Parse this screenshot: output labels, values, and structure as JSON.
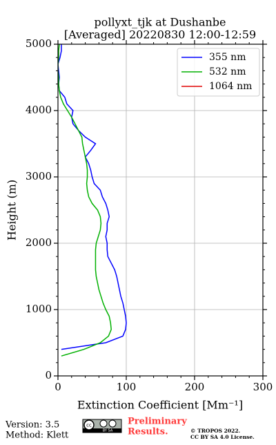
{
  "chart_data": {
    "type": "line",
    "orientation": "vertical",
    "title": [
      "pollyxt_tjk at Dushanbe",
      "[Averaged] 20220830 12:00-12:59"
    ],
    "xlabel": "Extinction Coefficient [Mm⁻¹]",
    "ylabel": "Height (m)",
    "xlim": [
      0,
      300
    ],
    "ylim": [
      0,
      5000
    ],
    "xticks": [
      0,
      100,
      200,
      300
    ],
    "yticks": [
      0,
      1000,
      2000,
      3000,
      4000,
      5000
    ],
    "xminorticks": [
      20,
      40,
      60,
      80,
      120,
      140,
      160,
      180,
      220,
      240,
      260,
      280
    ],
    "yminorticks": [
      200,
      400,
      600,
      800,
      1200,
      1400,
      1600,
      1800,
      2200,
      2400,
      2600,
      2800,
      3200,
      3400,
      3600,
      3800,
      4200,
      4400,
      4600,
      4800
    ],
    "grid": true,
    "legend": "upper right",
    "x": [
      300,
      400,
      500,
      600,
      700,
      800,
      900,
      1000,
      1100,
      1200,
      1300,
      1400,
      1500,
      1600,
      1700,
      1800,
      1900,
      2000,
      2100,
      2200,
      2300,
      2400,
      2500,
      2600,
      2700,
      2800,
      2900,
      3000,
      3100,
      3200,
      3300,
      3400,
      3500,
      3600,
      3700,
      3800,
      3900,
      4000,
      4100,
      4200,
      4300,
      4400,
      4500,
      4600,
      4700,
      4800,
      4900,
      5000
    ],
    "series": [
      {
        "name": "355 nm",
        "color": "#0000ff",
        "values": [
          null,
          5,
          70,
          95,
          99,
          100,
          99,
          97,
          95,
          92,
          90,
          88,
          86,
          83,
          78,
          73,
          72,
          72,
          70,
          72,
          72,
          75,
          73,
          70,
          65,
          62,
          53,
          50,
          48,
          45,
          40,
          48,
          55,
          40,
          30,
          22,
          20,
          22,
          13,
          10,
          2,
          1,
          2,
          1,
          0,
          3,
          5,
          5
        ]
      },
      {
        "name": "532 nm",
        "color": "#00b000",
        "values": [
          5,
          38,
          62,
          74,
          78,
          77,
          75,
          70,
          66,
          63,
          60,
          58,
          56,
          55,
          55,
          55,
          55,
          56,
          59,
          62,
          63,
          62,
          58,
          50,
          45,
          43,
          42,
          43,
          43,
          42,
          40,
          38,
          36,
          35,
          30,
          25,
          20,
          14,
          8,
          4,
          2,
          1,
          1,
          0,
          0,
          1,
          1,
          2
        ]
      },
      {
        "name": "1064 nm",
        "color": "#e00000",
        "values": [
          null,
          null,
          null,
          null,
          null,
          null,
          null,
          null,
          null,
          null,
          null,
          null,
          null,
          null,
          null,
          null,
          null,
          null,
          null,
          null,
          null,
          null,
          null,
          null,
          null,
          null,
          null,
          null,
          null,
          null,
          null,
          null,
          null,
          null,
          null,
          null,
          null,
          null,
          null,
          null,
          null,
          null,
          null,
          null,
          null,
          null,
          null,
          null
        ]
      }
    ]
  },
  "footer": {
    "version": "Version: 3.5",
    "method": "Method: Klett",
    "preliminary": [
      "Preliminary",
      "Results."
    ],
    "copyright": "© TROPOS 2022.",
    "license": "CC BY SA 4.0 License.",
    "logo_text": "BY SA"
  }
}
